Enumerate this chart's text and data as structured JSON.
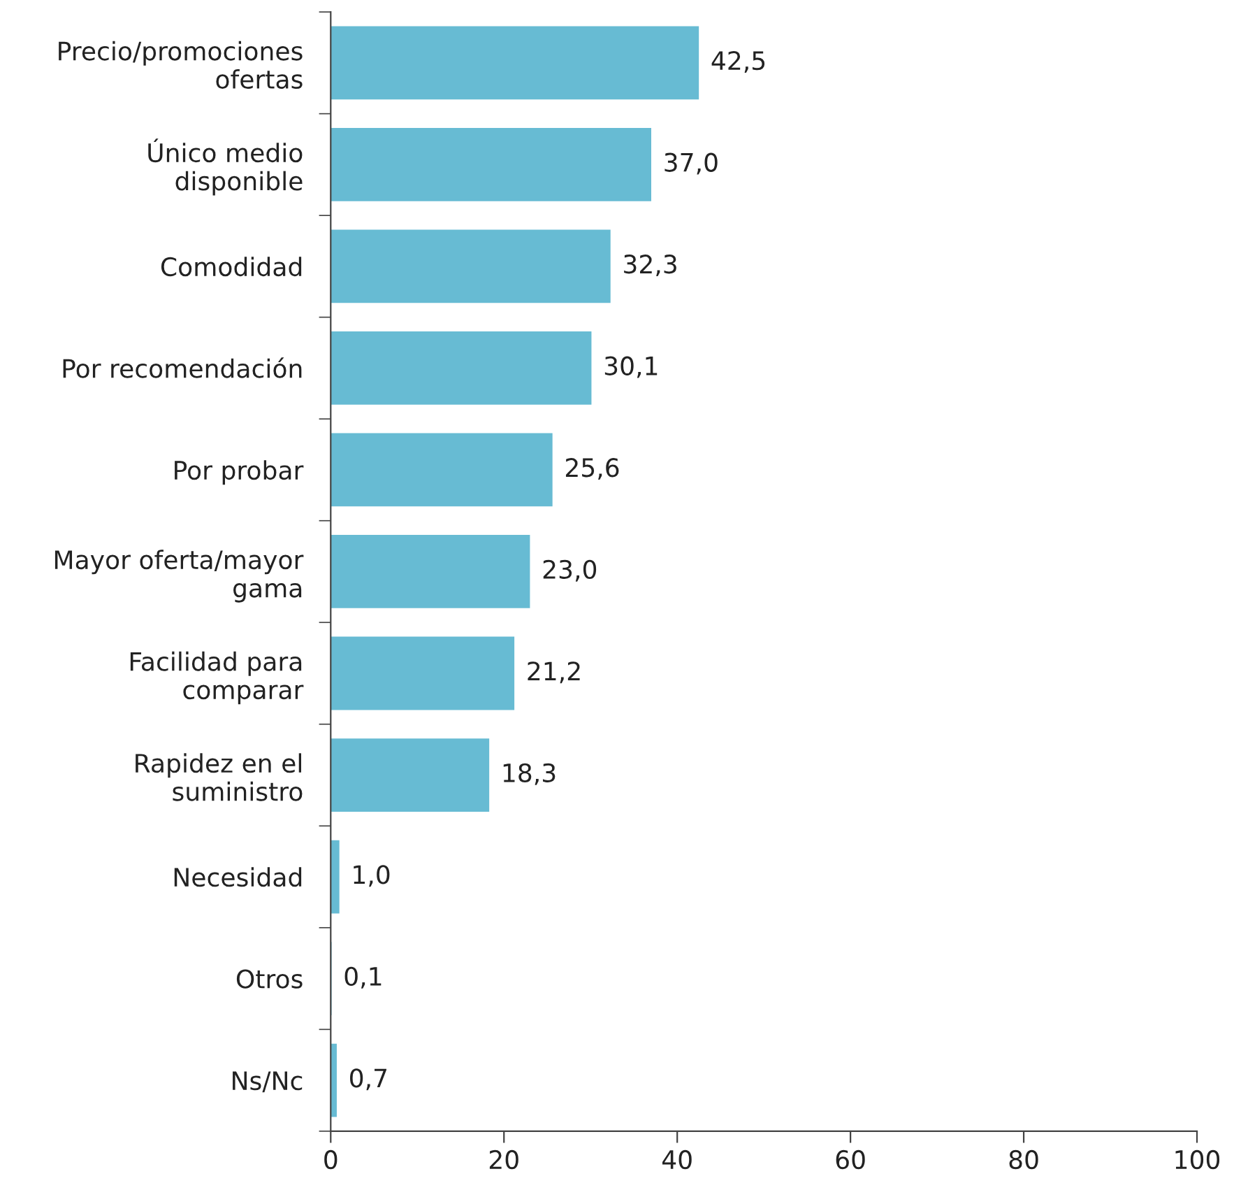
{
  "chart_data": {
    "type": "bar",
    "orientation": "horizontal",
    "categories": [
      "Precio/promociones\nofertas",
      "Único medio\ndisponible",
      "Comodidad",
      "Por recomendación",
      "Por probar",
      "Mayor oferta/mayor\ngama",
      "Facilidad para\ncomparar",
      "Rapidez en el\nsuministro",
      "Necesidad",
      "Otros",
      "Ns/Nc"
    ],
    "values": [
      42.5,
      37.0,
      32.3,
      30.1,
      25.6,
      23.0,
      21.2,
      18.3,
      1.0,
      0.1,
      0.7
    ],
    "value_labels": [
      "42,5",
      "37,0",
      "32,3",
      "30,1",
      "25,6",
      "23,0",
      "21,2",
      "18,3",
      "1,0",
      "0,1",
      "0,7"
    ],
    "color": "#67bbd3",
    "xlim": [
      0,
      100
    ],
    "xticks": [
      0,
      20,
      40,
      60,
      80,
      100
    ],
    "grid": false,
    "legend": false
  }
}
